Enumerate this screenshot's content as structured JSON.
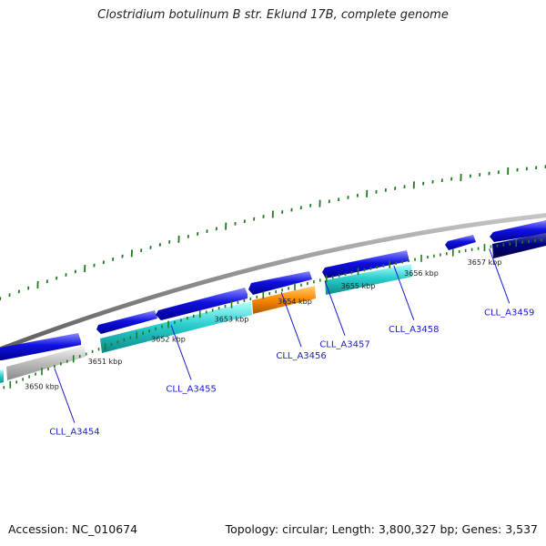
{
  "title": "Clostridium botulinum B str. Eklund 17B, complete genome",
  "accession": "Accession: NC_010674",
  "stats": "Topology: circular; Length: 3,800,327 bp; Genes: 3,537",
  "colors": {
    "backbone": "#8a8a8a",
    "tick": "#1f7a1f",
    "strand_plus": "#1010e0",
    "strand_dark": "#000080",
    "cds_teal": "#2ccfcf",
    "cds_grey": "#c0c0c0",
    "cds_orange": "#ff8c00",
    "label": "#1a1acc"
  },
  "ticks": [
    {
      "label": "3650 kbp",
      "pos": 3650
    },
    {
      "label": "3651 kbp",
      "pos": 3651
    },
    {
      "label": "3652 kbp",
      "pos": 3652
    },
    {
      "label": "3653 kbp",
      "pos": 3653
    },
    {
      "label": "3654 kbp",
      "pos": 3654
    },
    {
      "label": "3655 kbp",
      "pos": 3655
    },
    {
      "label": "3656 kbp",
      "pos": 3656
    },
    {
      "label": "3657 kbp",
      "pos": 3657
    }
  ],
  "genes": [
    {
      "label": "CLL_A3454",
      "start": 3649.74,
      "end": 3650.66
    },
    {
      "label": "CLL_A3455",
      "start": 3651.12,
      "end": 3652.97
    },
    {
      "label": "CLL_A3456",
      "start": 3653.45,
      "end": 3654.12
    },
    {
      "label": "CLL_A3457",
      "start": 3654.15,
      "end": 3654.8
    },
    {
      "label": "CLL_A3458",
      "start": 3655.08,
      "end": 3656.05
    },
    {
      "label": "CLL_A3459",
      "start": 3656.95,
      "end": 3657.2
    }
  ]
}
